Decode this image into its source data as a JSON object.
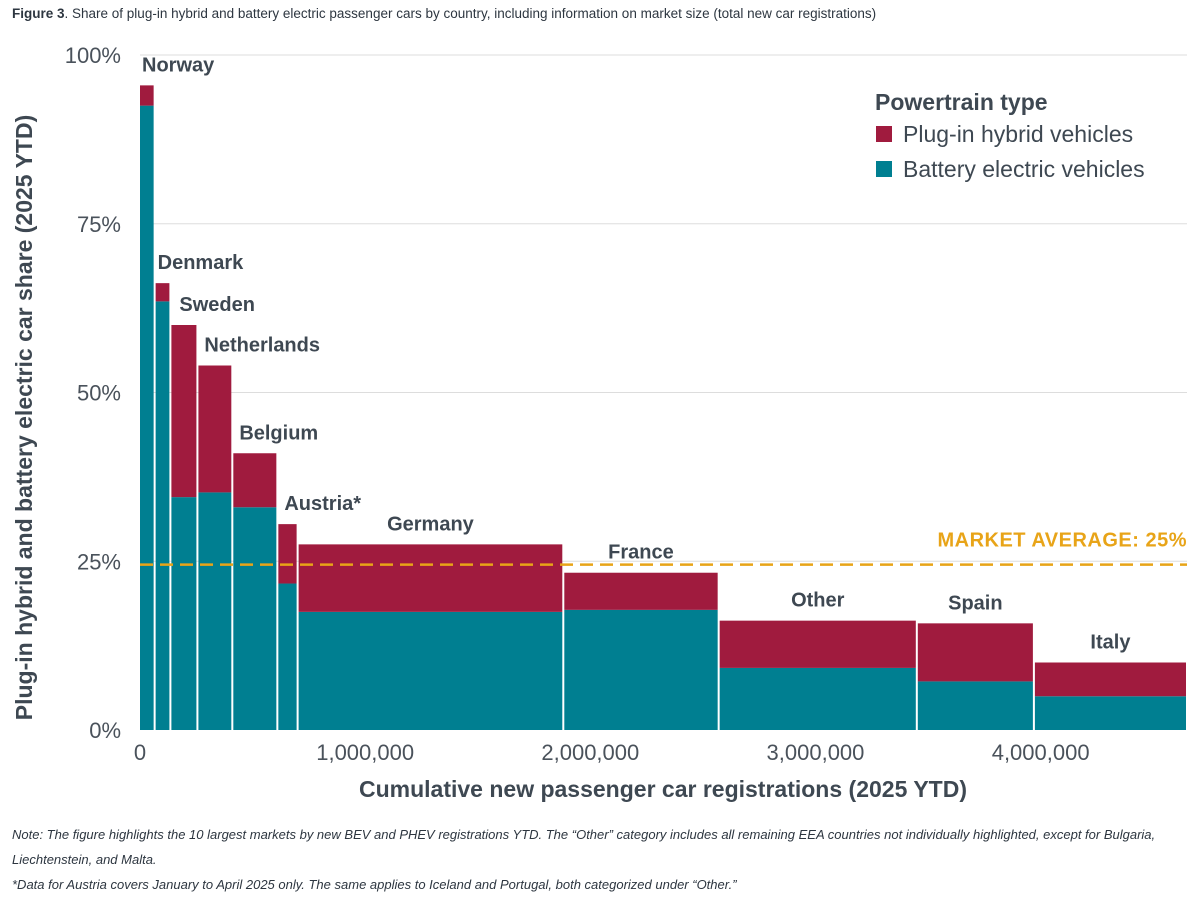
{
  "caption": {
    "label": "Figure 3",
    "text": ". Share of plug-in hybrid and battery electric passenger cars by country, including information on market size (total new car registrations)"
  },
  "colors": {
    "phev": "#a01b3e",
    "bev": "#007f91",
    "average": "#e8a418",
    "grid": "#dddddd"
  },
  "chart_data": {
    "type": "bar",
    "subtype": "variable-width stacked (marimekko)",
    "xlabel": "Cumulative new passenger car registrations (2025 YTD)",
    "ylabel": "Plug-in hybrid and battery electric car share (2025 YTD)",
    "xlim": [
      0,
      4650000
    ],
    "ylim": [
      0,
      100
    ],
    "x_ticks": [
      {
        "value": 0,
        "label": "0"
      },
      {
        "value": 1000000,
        "label": "1,000,000"
      },
      {
        "value": 2000000,
        "label": "2,000,000"
      },
      {
        "value": 3000000,
        "label": "3,000,000"
      },
      {
        "value": 4000000,
        "label": "4,000,000"
      }
    ],
    "y_ticks": [
      {
        "value": 0,
        "label": "0%"
      },
      {
        "value": 25,
        "label": "25%"
      },
      {
        "value": 50,
        "label": "50%"
      },
      {
        "value": 75,
        "label": "75%"
      },
      {
        "value": 100,
        "label": "100%"
      }
    ],
    "legend": {
      "title": "Powertrain type",
      "position": "top-right",
      "items": [
        {
          "key": "phev",
          "label": "Plug-in hybrid vehicles"
        },
        {
          "key": "bev",
          "label": "Battery electric vehicles"
        }
      ]
    },
    "average": {
      "value": 24.5,
      "label": "MARKET AVERAGE: 25%"
    },
    "countries": [
      {
        "name": "Norway",
        "x_start": 0,
        "x_end": 65000,
        "bev": 92.5,
        "phev": 3.0
      },
      {
        "name": "Denmark",
        "x_start": 65000,
        "x_end": 135000,
        "bev": 63.5,
        "phev": 2.7
      },
      {
        "name": "Sweden",
        "x_start": 135000,
        "x_end": 255000,
        "bev": 34.5,
        "phev": 25.5
      },
      {
        "name": "Netherlands",
        "x_start": 255000,
        "x_end": 410000,
        "bev": 35.2,
        "phev": 18.8
      },
      {
        "name": "Belgium",
        "x_start": 410000,
        "x_end": 610000,
        "bev": 33.0,
        "phev": 8.0
      },
      {
        "name": "Austria*",
        "x_start": 610000,
        "x_end": 700000,
        "bev": 21.7,
        "phev": 8.8
      },
      {
        "name": "Germany",
        "x_start": 700000,
        "x_end": 1880000,
        "bev": 17.5,
        "phev": 10.0
      },
      {
        "name": "France",
        "x_start": 1880000,
        "x_end": 2570000,
        "bev": 17.8,
        "phev": 5.5
      },
      {
        "name": "Other",
        "x_start": 2570000,
        "x_end": 3450000,
        "bev": 9.2,
        "phev": 7.0
      },
      {
        "name": "Spain",
        "x_start": 3450000,
        "x_end": 3970000,
        "bev": 7.2,
        "phev": 8.6
      },
      {
        "name": "Italy",
        "x_start": 3970000,
        "x_end": 4650000,
        "bev": 5.0,
        "phev": 5.0
      }
    ]
  },
  "notes": {
    "line1": "Note: The figure highlights the 10 largest markets by new BEV and PHEV registrations YTD. The “Other” category includes all remaining EEA countries not individually highlighted, except for Bulgaria, Liechtenstein, and Malta.",
    "line2": "*Data for Austria covers January to April 2025 only. The same applies to Iceland and Portugal, both categorized under “Other.”"
  }
}
